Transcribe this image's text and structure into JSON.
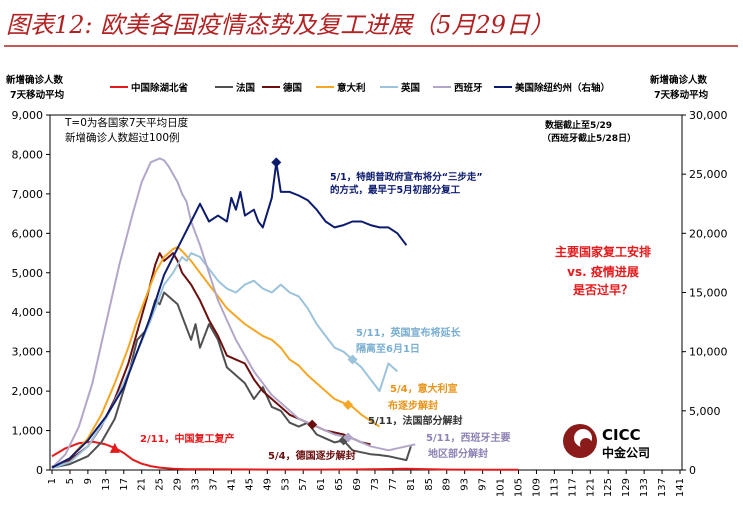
{
  "header": {
    "title": "图表12: 欧美各国疫情态势及复工进展（5月29日）"
  },
  "chart_data": {
    "type": "line",
    "title": "图表12: 欧美各国疫情态势及复工进展（5月29日）",
    "ylabel_left": [
      "新增确诊人数",
      "7天移动平均"
    ],
    "ylabel_right": [
      "新增确诊人数",
      "7天移动平均"
    ],
    "ylim_left": [
      0,
      9000
    ],
    "ylim_right": [
      0,
      30000
    ],
    "xlim": [
      1,
      141
    ],
    "yticks_left": [
      "0",
      "1,000",
      "2,000",
      "3,000",
      "4,000",
      "5,000",
      "6,000",
      "7,000",
      "8,000",
      "9,000"
    ],
    "yticks_right": [
      "0",
      "5,000",
      "10,000",
      "15,000",
      "20,000",
      "25,000",
      "30,000"
    ],
    "xticks": [
      "1",
      "5",
      "9",
      "13",
      "17",
      "21",
      "25",
      "29",
      "33",
      "37",
      "41",
      "45",
      "49",
      "53",
      "57",
      "61",
      "65",
      "69",
      "73",
      "77",
      "81",
      "85",
      "89",
      "93",
      "97",
      "101",
      "105",
      "109",
      "113",
      "117",
      "121",
      "125",
      "129",
      "133",
      "137",
      "141"
    ],
    "series": [
      {
        "name": "中国除湖北省",
        "color": "#e41a1c",
        "axis": "left",
        "x": [
          1,
          4,
          7,
          10,
          13,
          15,
          17,
          19,
          21,
          23,
          25,
          28,
          31,
          35,
          40,
          50,
          60,
          70,
          80,
          85,
          90,
          100,
          105
        ],
        "y": [
          350,
          550,
          680,
          720,
          650,
          560,
          430,
          260,
          160,
          100,
          60,
          30,
          20,
          20,
          15,
          10,
          10,
          15,
          30,
          20,
          10,
          5,
          5
        ]
      },
      {
        "name": "法国",
        "color": "#505050",
        "axis": "left",
        "x": [
          1,
          5,
          9,
          12,
          15,
          18,
          20,
          22,
          24,
          25,
          26,
          27,
          28,
          29,
          30,
          32,
          33,
          34,
          36,
          38,
          40,
          42,
          44,
          46,
          48,
          50,
          52,
          54,
          56,
          58,
          60,
          62,
          64,
          66,
          68,
          70,
          72,
          74,
          76,
          78,
          80,
          81
        ],
        "y": [
          60,
          150,
          350,
          700,
          1300,
          2400,
          3300,
          3550,
          4300,
          4200,
          4500,
          4400,
          4300,
          4200,
          3900,
          3300,
          3700,
          3100,
          3700,
          3300,
          2600,
          2400,
          2200,
          1800,
          2100,
          1600,
          1500,
          1200,
          1100,
          1200,
          900,
          800,
          700,
          750,
          500,
          450,
          400,
          380,
          350,
          300,
          250,
          600
        ]
      },
      {
        "name": "德国",
        "color": "#6b0f0f",
        "axis": "left",
        "x": [
          1,
          5,
          9,
          12,
          15,
          18,
          20,
          22,
          24,
          25,
          26,
          27,
          28,
          29,
          30,
          32,
          34,
          36,
          38,
          40,
          42,
          44,
          46,
          48,
          50,
          52,
          54,
          56,
          58,
          60,
          62,
          64,
          66,
          68,
          70,
          72
        ],
        "y": [
          80,
          250,
          600,
          1100,
          1800,
          2700,
          3500,
          4300,
          5200,
          5500,
          5300,
          5400,
          5500,
          5300,
          5000,
          4700,
          4300,
          3800,
          3400,
          2900,
          2800,
          2700,
          2300,
          2000,
          1800,
          1600,
          1400,
          1300,
          1200,
          1100,
          1000,
          950,
          900,
          800,
          700,
          650
        ]
      },
      {
        "name": "意大利",
        "color": "#f5a623",
        "axis": "left",
        "x": [
          1,
          5,
          9,
          12,
          15,
          18,
          20,
          22,
          24,
          26,
          28,
          29,
          30,
          32,
          34,
          36,
          38,
          40,
          42,
          44,
          46,
          48,
          50,
          52,
          54,
          56,
          58,
          60,
          62,
          64,
          66,
          68,
          70,
          72,
          74
        ],
        "y": [
          50,
          300,
          800,
          1400,
          2200,
          3100,
          3800,
          4400,
          5000,
          5400,
          5600,
          5650,
          5550,
          5300,
          5000,
          4700,
          4400,
          4100,
          3900,
          3700,
          3550,
          3400,
          3300,
          3100,
          2800,
          2650,
          2400,
          2200,
          2000,
          1800,
          1700,
          1600,
          1400,
          1250,
          1100
        ]
      },
      {
        "name": "英国",
        "color": "#9cc3dc",
        "axis": "left",
        "x": [
          1,
          5,
          9,
          13,
          17,
          20,
          23,
          26,
          28,
          30,
          31,
          32,
          34,
          36,
          38,
          40,
          42,
          44,
          46,
          48,
          50,
          52,
          54,
          56,
          58,
          60,
          62,
          64,
          66,
          68,
          70,
          72,
          74,
          76,
          78
        ],
        "y": [
          50,
          200,
          600,
          1300,
          2200,
          3000,
          3800,
          4700,
          5000,
          5400,
          5300,
          5500,
          5400,
          5100,
          4800,
          4600,
          4500,
          4700,
          4800,
          4600,
          4500,
          4700,
          4500,
          4400,
          4100,
          3700,
          3400,
          3100,
          3000,
          2800,
          2600,
          2300,
          2000,
          2700,
          2500
        ]
      },
      {
        "name": "西班牙",
        "color": "#b3a7c9",
        "axis": "left",
        "x": [
          1,
          4,
          7,
          10,
          13,
          16,
          19,
          21,
          23,
          25,
          26,
          27,
          28,
          29,
          30,
          31,
          32,
          34,
          36,
          38,
          40,
          42,
          44,
          46,
          48,
          50,
          52,
          54,
          56,
          58,
          60,
          62,
          64,
          66,
          68,
          70,
          72,
          74,
          76,
          78,
          80,
          82
        ],
        "y": [
          50,
          400,
          1100,
          2200,
          3700,
          5200,
          6500,
          7300,
          7800,
          7900,
          7850,
          7700,
          7500,
          7300,
          7000,
          6800,
          6300,
          5700,
          5000,
          4300,
          3800,
          3300,
          2900,
          2500,
          2200,
          1900,
          1700,
          1500,
          1300,
          1200,
          1100,
          1000,
          900,
          850,
          800,
          700,
          600,
          550,
          500,
          550,
          600,
          650
        ]
      },
      {
        "name": "美国除纽约州（右轴）",
        "color": "#0d1b6e",
        "axis": "right",
        "x": [
          1,
          5,
          9,
          13,
          17,
          20,
          23,
          26,
          28,
          30,
          32,
          34,
          36,
          38,
          40,
          41,
          42,
          43,
          44,
          46,
          47,
          48,
          50,
          51,
          52,
          53,
          54,
          56,
          58,
          60,
          62,
          64,
          66,
          68,
          70,
          72,
          74,
          76,
          78,
          80
        ],
        "y": [
          200,
          1000,
          2500,
          4500,
          7000,
          10000,
          13000,
          16500,
          18000,
          19500,
          21000,
          22500,
          21000,
          21500,
          21000,
          23000,
          22000,
          23500,
          21500,
          22000,
          21000,
          20500,
          23000,
          26000,
          23500,
          23500,
          23500,
          23200,
          22800,
          22000,
          21000,
          20500,
          20700,
          21000,
          21000,
          20700,
          20500,
          20500,
          20000,
          19000
        ]
      }
    ],
    "annotations": [
      "T=0为各国家7天平均日度",
      "新增确诊人数超过100例",
      "数据截止至5/29",
      "（西班牙截止5/28日）",
      "5/1，特朗普政府宣布将分“三步走”",
      "的方式，最早于5月初部分复工",
      "主要国家复工安排",
      "vs. 疫情进展",
      "是否过早？",
      "5/11，英国宣布将延长",
      "隔离至6月1日",
      "5/4，意大利宣",
      "布逐步解封",
      "5/11，法国部分解封",
      "5/11，西班牙主要",
      "地区部分解封",
      "2/11，中国复工复产",
      "5/4，德国逐步解封"
    ],
    "markers": [
      {
        "series": "中国除湖北省",
        "x": 15,
        "shape": "triangle"
      },
      {
        "series": "美国除纽约州（右轴）",
        "x": 51,
        "shape": "diamond"
      },
      {
        "series": "意大利",
        "x": 67,
        "shape": "diamond"
      },
      {
        "series": "英国",
        "x": 68,
        "shape": "diamond"
      },
      {
        "series": "法国",
        "x": 66,
        "shape": "diamond"
      },
      {
        "series": "西班牙",
        "x": 67,
        "shape": "diamond"
      },
      {
        "series": "德国",
        "x": 59,
        "shape": "diamond"
      }
    ],
    "logo": {
      "text_top": "CICC",
      "text_bottom": "中金公司"
    }
  }
}
